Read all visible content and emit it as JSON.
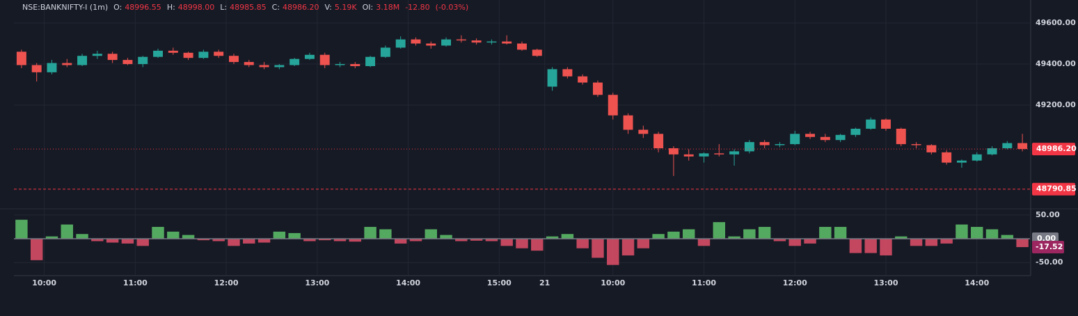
{
  "header": {
    "symbol": "NSE:BANKNIFTY-I (1m)",
    "fields": [
      {
        "label": "O:",
        "value": "48996.55"
      },
      {
        "label": "H:",
        "value": "48998.00"
      },
      {
        "label": "L:",
        "value": "48985.85"
      },
      {
        "label": "C:",
        "value": "48986.20"
      },
      {
        "label": "V:",
        "value": "5.19K"
      },
      {
        "label": "OI:",
        "value": "3.18M"
      }
    ],
    "change": "-12.80",
    "change_pct": "(-0.03%)"
  },
  "chart_data": [
    {
      "type": "candlestick",
      "up_color": "#26a69a",
      "down_color": "#ef5350",
      "xlim": [
        0,
        67
      ],
      "xticks": [
        {
          "value": 2,
          "label": "10:00"
        },
        {
          "value": 8,
          "label": "11:00"
        },
        {
          "value": 14,
          "label": "12:00"
        },
        {
          "value": 20,
          "label": "13:00"
        },
        {
          "value": 26,
          "label": "14:00"
        },
        {
          "value": 32,
          "label": "15:00"
        },
        {
          "value": 35,
          "label": "21"
        },
        {
          "value": 39.5,
          "label": "10:00"
        },
        {
          "value": 45.5,
          "label": "11:00"
        },
        {
          "value": 51.5,
          "label": "12:00"
        },
        {
          "value": 57.5,
          "label": "13:00"
        },
        {
          "value": 63.5,
          "label": "14:00"
        }
      ],
      "ylim": [
        48695,
        49712
      ],
      "yticks": [
        {
          "value": 49600,
          "label": "49600.00"
        },
        {
          "value": 49400,
          "label": "49400.00"
        },
        {
          "value": 49200,
          "label": "49200.00"
        }
      ],
      "grid": true,
      "open": [
        49460,
        49395,
        49360,
        49405,
        49395,
        49440,
        49450,
        49420,
        49400,
        49435,
        49465,
        49455,
        49430,
        49460,
        49440,
        49410,
        49395,
        49385,
        49395,
        49425,
        49445,
        49395,
        49400,
        49390,
        49435,
        49480,
        49520,
        49500,
        49490,
        49520,
        49515,
        49505,
        49510,
        49500,
        49470,
        49290,
        49375,
        49340,
        49310,
        49250,
        49150,
        49080,
        49060,
        48990,
        48960,
        48950,
        48965,
        48960,
        48975,
        49020,
        49005,
        49010,
        49060,
        49045,
        49030,
        49055,
        49085,
        49130,
        49085,
        49010,
        49005,
        48970,
        48920,
        48930,
        48960,
        48990,
        49015
      ],
      "high": [
        49470,
        49405,
        49420,
        49425,
        49450,
        49465,
        49460,
        49430,
        49440,
        49475,
        49480,
        49460,
        49470,
        49470,
        49450,
        49420,
        49410,
        49400,
        49430,
        49455,
        49455,
        49410,
        49410,
        49440,
        49490,
        49535,
        49530,
        49510,
        49530,
        49540,
        49525,
        49520,
        49540,
        49510,
        49475,
        49385,
        49385,
        49350,
        49320,
        49260,
        49160,
        49100,
        49070,
        49000,
        48985,
        48970,
        49010,
        48985,
        49030,
        49030,
        49020,
        49075,
        49070,
        49060,
        49060,
        49090,
        49140,
        49135,
        49090,
        49020,
        49010,
        48980,
        48935,
        48970,
        49000,
        49025,
        49060
      ],
      "low": [
        49380,
        49315,
        49350,
        49385,
        49390,
        49425,
        49405,
        49395,
        49385,
        49430,
        49445,
        49420,
        49425,
        49430,
        49400,
        49385,
        49375,
        49375,
        49390,
        49420,
        49380,
        49385,
        49380,
        49385,
        49430,
        49475,
        49490,
        49475,
        49485,
        49505,
        49495,
        49495,
        49495,
        49465,
        49435,
        49270,
        49330,
        49300,
        49240,
        49130,
        49060,
        49040,
        48970,
        48855,
        48930,
        48920,
        48950,
        48905,
        48965,
        48990,
        48995,
        49005,
        49035,
        49020,
        49020,
        49045,
        49080,
        49075,
        49000,
        48990,
        48960,
        48910,
        48895,
        48925,
        48955,
        48985,
        48975
      ],
      "close": [
        49395,
        49360,
        49405,
        49395,
        49440,
        49450,
        49420,
        49400,
        49435,
        49465,
        49455,
        49430,
        49460,
        49440,
        49410,
        49395,
        49385,
        49395,
        49425,
        49445,
        49395,
        49400,
        49390,
        49435,
        49480,
        49520,
        49500,
        49490,
        49520,
        49515,
        49505,
        49510,
        49500,
        49470,
        49440,
        49375,
        49340,
        49310,
        49250,
        49150,
        49080,
        49060,
        48990,
        48960,
        48950,
        48965,
        48960,
        48975,
        49020,
        49005,
        49010,
        49060,
        49045,
        49030,
        49055,
        49085,
        49130,
        49085,
        49010,
        49005,
        48970,
        48920,
        48930,
        48960,
        48990,
        49015,
        48986.2
      ],
      "price_lines": [
        {
          "value": 48986.2,
          "label": "48986.20",
          "color": "#f23645",
          "dashed": false
        },
        {
          "value": 48790.85,
          "label": "48790.85",
          "color": "#f23645",
          "dashed": true
        }
      ]
    },
    {
      "type": "bar",
      "up_color": "#5fc36b",
      "down_color": "#e0506a",
      "ylim": [
        -76,
        63
      ],
      "yticks": [
        {
          "value": 50,
          "label": "50.00"
        },
        {
          "value": -50,
          "label": "-50.00"
        }
      ],
      "zero_label": {
        "value": 0,
        "label": "0.00",
        "color": "#787b86"
      },
      "last_color": "#9c2760",
      "values": [
        40,
        -45,
        5,
        30,
        10,
        -5,
        -8,
        -10,
        -15,
        25,
        15,
        8,
        -3,
        -5,
        -15,
        -10,
        -8,
        15,
        12,
        -5,
        -3,
        -5,
        -6,
        25,
        20,
        -10,
        -5,
        20,
        8,
        -5,
        -4,
        -5,
        -15,
        -20,
        -25,
        5,
        10,
        -20,
        -40,
        -55,
        -35,
        -20,
        10,
        15,
        20,
        -15,
        35,
        5,
        20,
        25,
        -5,
        -15,
        -10,
        25,
        25,
        -30,
        -30,
        -35,
        5,
        -15,
        -15,
        -10,
        30,
        25,
        20,
        8,
        -17.52
      ],
      "last_value_label": "-17.52"
    }
  ]
}
